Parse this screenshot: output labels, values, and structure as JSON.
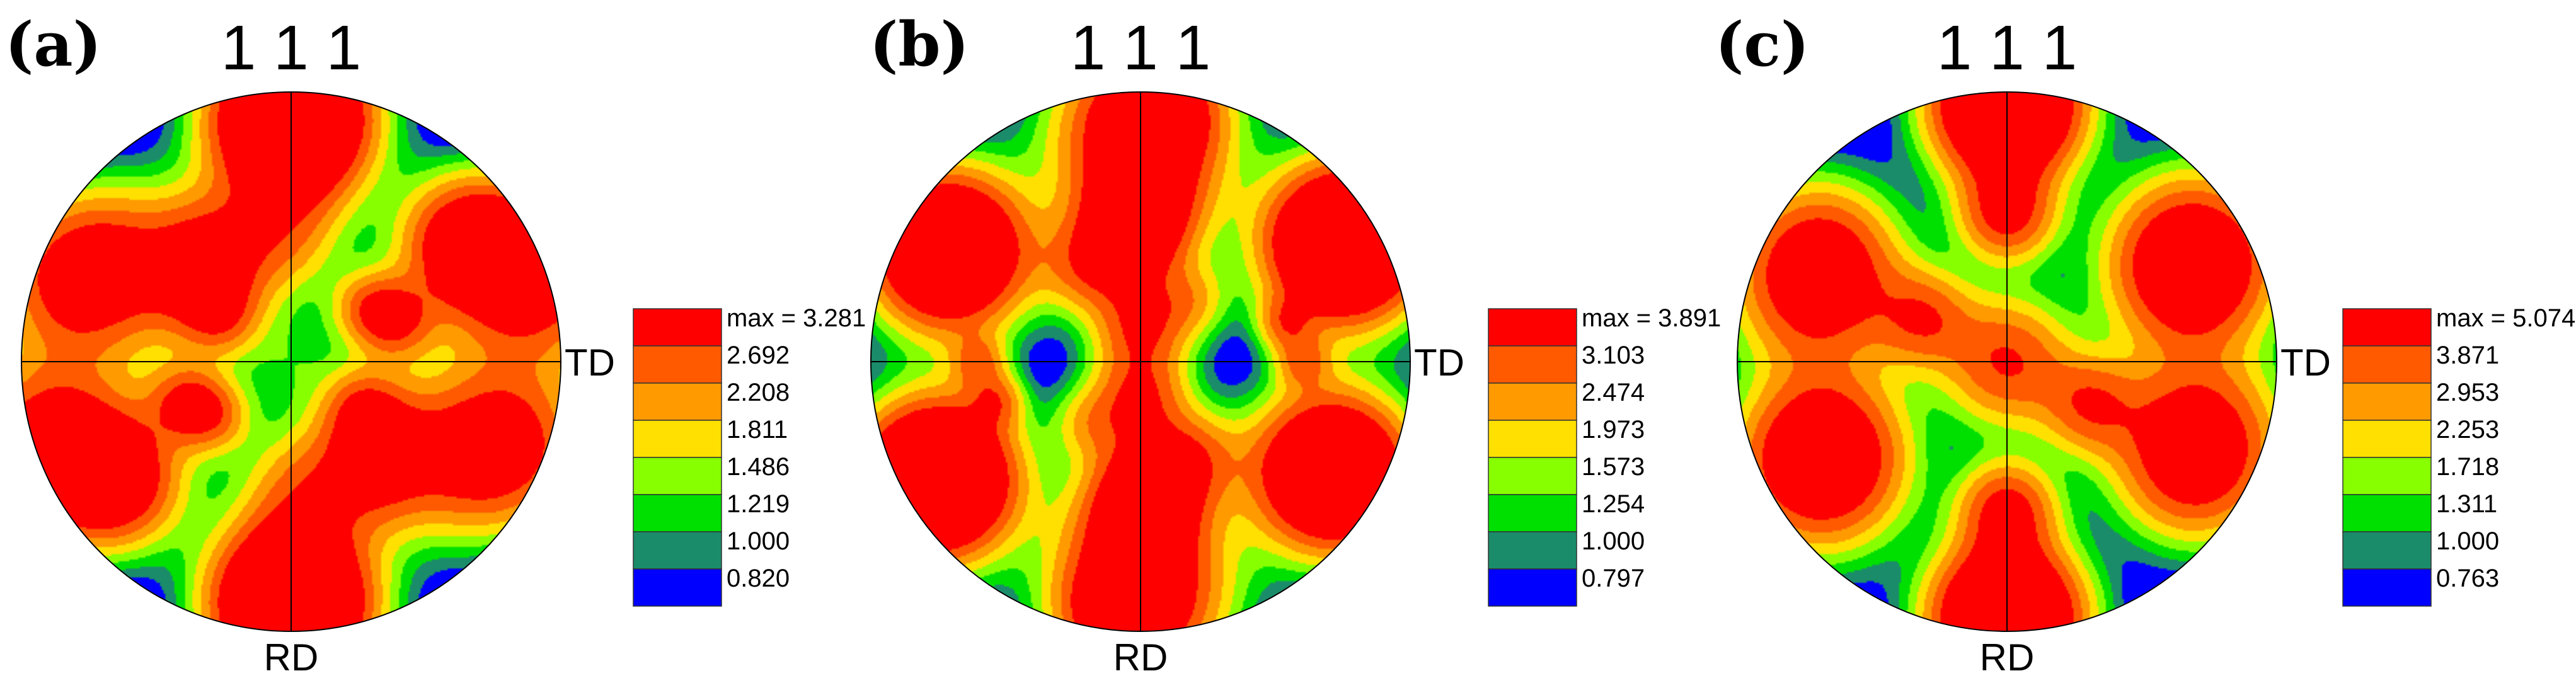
{
  "colors": {
    "level0": "#0000FF",
    "level1": "#1A8C6A",
    "level2": "#00E000",
    "level3": "#88FF00",
    "level4": "#FFE000",
    "level5": "#FF9A00",
    "level6": "#FF5A00",
    "level7": "#FF0000",
    "axis": "#000000"
  },
  "panels": [
    {
      "label": "(a)",
      "pole": "1 1 1",
      "rd": "RD",
      "td": "TD",
      "legend": [
        "max = 3.281",
        "2.692",
        "2.208",
        "1.811",
        "1.486",
        "1.219",
        "1.000",
        "0.820"
      ],
      "peaks": [
        {
          "r": 0.0,
          "phi": 0,
          "s": 0.14,
          "w": 0.35
        },
        {
          "r": 0.95,
          "phi": 90,
          "s": 0.2,
          "w": 3.0
        },
        {
          "r": 0.78,
          "phi": 35,
          "s": 0.17,
          "w": 2.6
        },
        {
          "r": 0.88,
          "phi": 160,
          "s": 0.2,
          "w": 1.9
        },
        {
          "r": 0.95,
          "phi": 200,
          "s": 0.22,
          "w": 3.2
        },
        {
          "r": 0.85,
          "phi": 270,
          "s": 0.2,
          "w": 3.0
        },
        {
          "r": 0.72,
          "phi": 330,
          "s": 0.22,
          "w": 1.9
        },
        {
          "r": 0.42,
          "phi": 20,
          "s": 0.1,
          "w": 1.7
        },
        {
          "r": 0.45,
          "phi": 95,
          "s": 0.16,
          "w": 1.5
        },
        {
          "r": 0.35,
          "phi": 215,
          "s": 0.1,
          "w": 1.6
        },
        {
          "r": 0.4,
          "phi": 320,
          "s": 0.14,
          "w": 1.7
        },
        {
          "r": 0.55,
          "phi": 125,
          "s": 0.14,
          "w": 1.2
        },
        {
          "r": 0.3,
          "phi": 150,
          "s": 0.1,
          "w": 1.0
        }
      ]
    },
    {
      "label": "(b)",
      "pole": "1 1 1",
      "rd": "RD",
      "td": "TD",
      "legend": [
        "max = 3.891",
        "3.103",
        "2.474",
        "1.973",
        "1.573",
        "1.254",
        "1.000",
        "0.797"
      ],
      "peaks": [
        {
          "r": 0.0,
          "phi": 0,
          "s": 0.14,
          "w": 0.4
        },
        {
          "r": 0.55,
          "phi": 90,
          "s": 0.15,
          "w": 3.0
        },
        {
          "r": 0.95,
          "phi": 85,
          "s": 0.14,
          "w": 1.9
        },
        {
          "r": 0.85,
          "phi": 30,
          "s": 0.18,
          "w": 3.6
        },
        {
          "r": 0.85,
          "phi": 150,
          "s": 0.18,
          "w": 2.9
        },
        {
          "r": 0.9,
          "phi": 210,
          "s": 0.2,
          "w": 3.7
        },
        {
          "r": 0.85,
          "phi": 270,
          "s": 0.22,
          "w": 3.8
        },
        {
          "r": 0.8,
          "phi": 330,
          "s": 0.2,
          "w": 3.5
        },
        {
          "r": 0.15,
          "phi": 270,
          "s": 0.12,
          "w": 2.2
        },
        {
          "r": 0.45,
          "phi": 275,
          "s": 0.12,
          "w": 1.8
        },
        {
          "r": 0.4,
          "phi": 300,
          "s": 0.12,
          "w": 1.8
        },
        {
          "r": 0.6,
          "phi": 180,
          "s": 0.07,
          "w": 1.6
        },
        {
          "r": 0.55,
          "phi": 15,
          "s": 0.07,
          "w": 1.6
        },
        {
          "r": 0.3,
          "phi": 230,
          "s": 0.1,
          "w": 1.3
        }
      ]
    },
    {
      "label": "(c)",
      "pole": "1 1 1",
      "rd": "RD",
      "td": "TD",
      "legend": [
        "max = 5.074",
        "3.871",
        "2.953",
        "2.253",
        "1.718",
        "1.311",
        "1.000",
        "0.763"
      ],
      "peaks": [
        {
          "r": 0.0,
          "phi": 0,
          "s": 0.16,
          "w": 1.8
        },
        {
          "r": 0.95,
          "phi": 90,
          "s": 0.17,
          "w": 5.0
        },
        {
          "r": 0.95,
          "phi": 270,
          "s": 0.17,
          "w": 5.0
        },
        {
          "r": 0.55,
          "phi": 90,
          "s": 0.12,
          "w": 2.0
        },
        {
          "r": 0.55,
          "phi": 270,
          "s": 0.12,
          "w": 2.0
        },
        {
          "r": 0.75,
          "phi": 25,
          "s": 0.18,
          "w": 3.2
        },
        {
          "r": 0.8,
          "phi": 150,
          "s": 0.18,
          "w": 2.8
        },
        {
          "r": 0.8,
          "phi": 210,
          "s": 0.2,
          "w": 3.8
        },
        {
          "r": 0.75,
          "phi": 340,
          "s": 0.2,
          "w": 3.5
        },
        {
          "r": 0.35,
          "phi": 155,
          "s": 0.12,
          "w": 1.5
        },
        {
          "r": 0.35,
          "phi": 330,
          "s": 0.12,
          "w": 1.5
        }
      ]
    }
  ]
}
